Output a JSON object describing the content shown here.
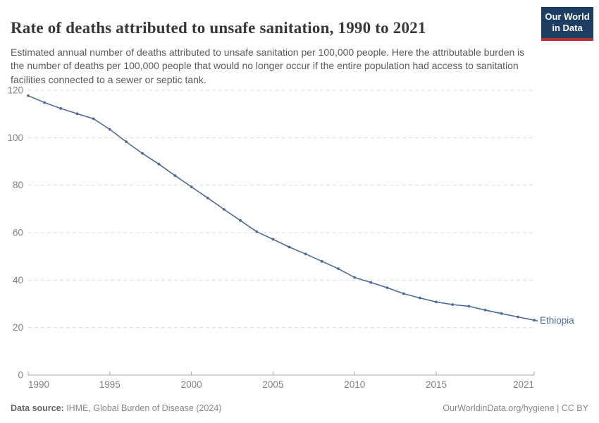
{
  "header": {
    "title": "Rate of deaths attributed to unsafe sanitation, 1990 to 2021",
    "subtitle": "Estimated annual number of deaths attributed to unsafe sanitation per 100,000 people. Here the attributable burden is the number of deaths per 100,000 people that would no longer occur if the entire population had access to sanitation facilities connected to a sewer or septic tank.",
    "logo": {
      "line1": "Our World",
      "line2": "in Data",
      "bg_color": "#1d3d63",
      "accent_color": "#b0352b"
    }
  },
  "chart_data": {
    "type": "line",
    "title": "Rate of deaths attributed to unsafe sanitation, 1990 to 2021",
    "xlabel": "",
    "ylabel": "",
    "x": [
      1990,
      1991,
      1992,
      1993,
      1994,
      1995,
      1996,
      1997,
      1998,
      1999,
      2000,
      2001,
      2002,
      2003,
      2004,
      2005,
      2006,
      2007,
      2008,
      2009,
      2010,
      2011,
      2012,
      2013,
      2014,
      2015,
      2016,
      2017,
      2018,
      2019,
      2020,
      2021
    ],
    "series": [
      {
        "name": "Ethiopia",
        "color": "#4c6a9c",
        "values": [
          117.7,
          114.8,
          112.3,
          110.1,
          108.0,
          103.5,
          98.3,
          93.4,
          88.9,
          84.0,
          79.3,
          74.6,
          69.8,
          65.1,
          60.4,
          57.2,
          53.9,
          51.0,
          47.9,
          44.8,
          41.1,
          39.0,
          36.8,
          34.3,
          32.5,
          30.8,
          29.7,
          29.0,
          27.4,
          25.9,
          24.5,
          23.1
        ]
      }
    ],
    "xlim": [
      1990,
      2021
    ],
    "ylim": [
      0,
      120
    ],
    "xticks": [
      1990,
      1995,
      2000,
      2005,
      2010,
      2015,
      2021
    ],
    "yticks": [
      0,
      20,
      40,
      60,
      80,
      100,
      120
    ],
    "grid": "horizontal-dashed",
    "legend_position": "end-of-line-label",
    "colors": {
      "grid": "#dcdcdc",
      "axis": "#a8a8a8",
      "tick_text": "#828282"
    }
  },
  "footer": {
    "datasource_label": "Data source:",
    "datasource_value": " IHME, Global Burden of Disease (2024)",
    "credit": "OurWorldinData.org/hygiene | CC BY"
  }
}
